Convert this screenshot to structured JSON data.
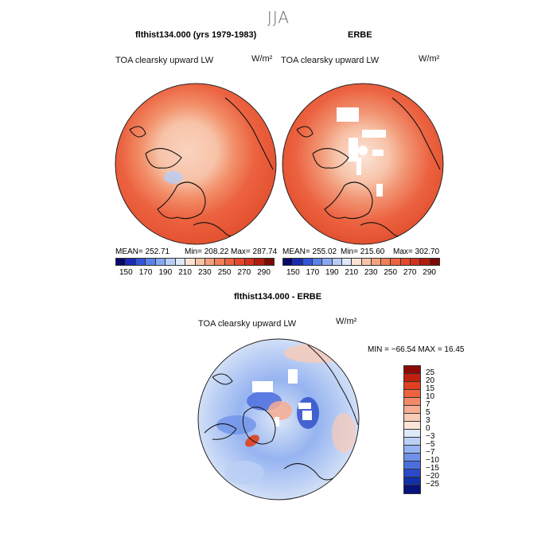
{
  "season_title": "JJA",
  "panel_left": {
    "title": "flthist134.000 (yrs 1979-1983)",
    "variable": "TOA clearsky upward LW",
    "units": "W/m²",
    "mean_label": "MEAN= 252.71",
    "min_label": "Min= 208.22",
    "max_label": "Max= 287.74"
  },
  "panel_right": {
    "title": "ERBE",
    "variable": "TOA clearsky upward LW",
    "units": "W/m²",
    "mean_label": "MEAN= 255.02",
    "min_label": "Min= 215.60",
    "max_label": "Max= 302.70"
  },
  "panel_diff": {
    "title": "flthist134.000 - ERBE",
    "variable": "TOA clearsky upward LW",
    "units": "W/m²",
    "minmax_label": "MIN = −66.54 MAX =  16.45"
  },
  "abs_colorbar": {
    "ticks": [
      "150",
      "170",
      "190",
      "210",
      "230",
      "250",
      "270",
      "290"
    ],
    "colors": [
      "#08086b",
      "#1c2bb5",
      "#3355d8",
      "#5a82e8",
      "#88a9f0",
      "#b8cdf5",
      "#dfe8fa",
      "#fbe2d3",
      "#f7c3a8",
      "#f4a17e",
      "#f0805a",
      "#ec6240",
      "#e5472b",
      "#d3301b",
      "#b21c0e",
      "#7d0a05"
    ]
  },
  "diff_colorbar": {
    "labels": [
      "25",
      "20",
      "15",
      "10",
      "7",
      "5",
      "3",
      "0",
      "−3",
      "−5",
      "−7",
      "−10",
      "−15",
      "−20",
      "−25"
    ],
    "colors": [
      "#8b0a05",
      "#c1200e",
      "#e0401f",
      "#ee6240",
      "#f28a68",
      "#f6ad91",
      "#f9cbb6",
      "#fbe5d9",
      "#dee8f8",
      "#bcd0f5",
      "#96b4f0",
      "#6f92e9",
      "#4c6fdf",
      "#2b4ac9",
      "#1430a6",
      "#07127a"
    ]
  }
}
